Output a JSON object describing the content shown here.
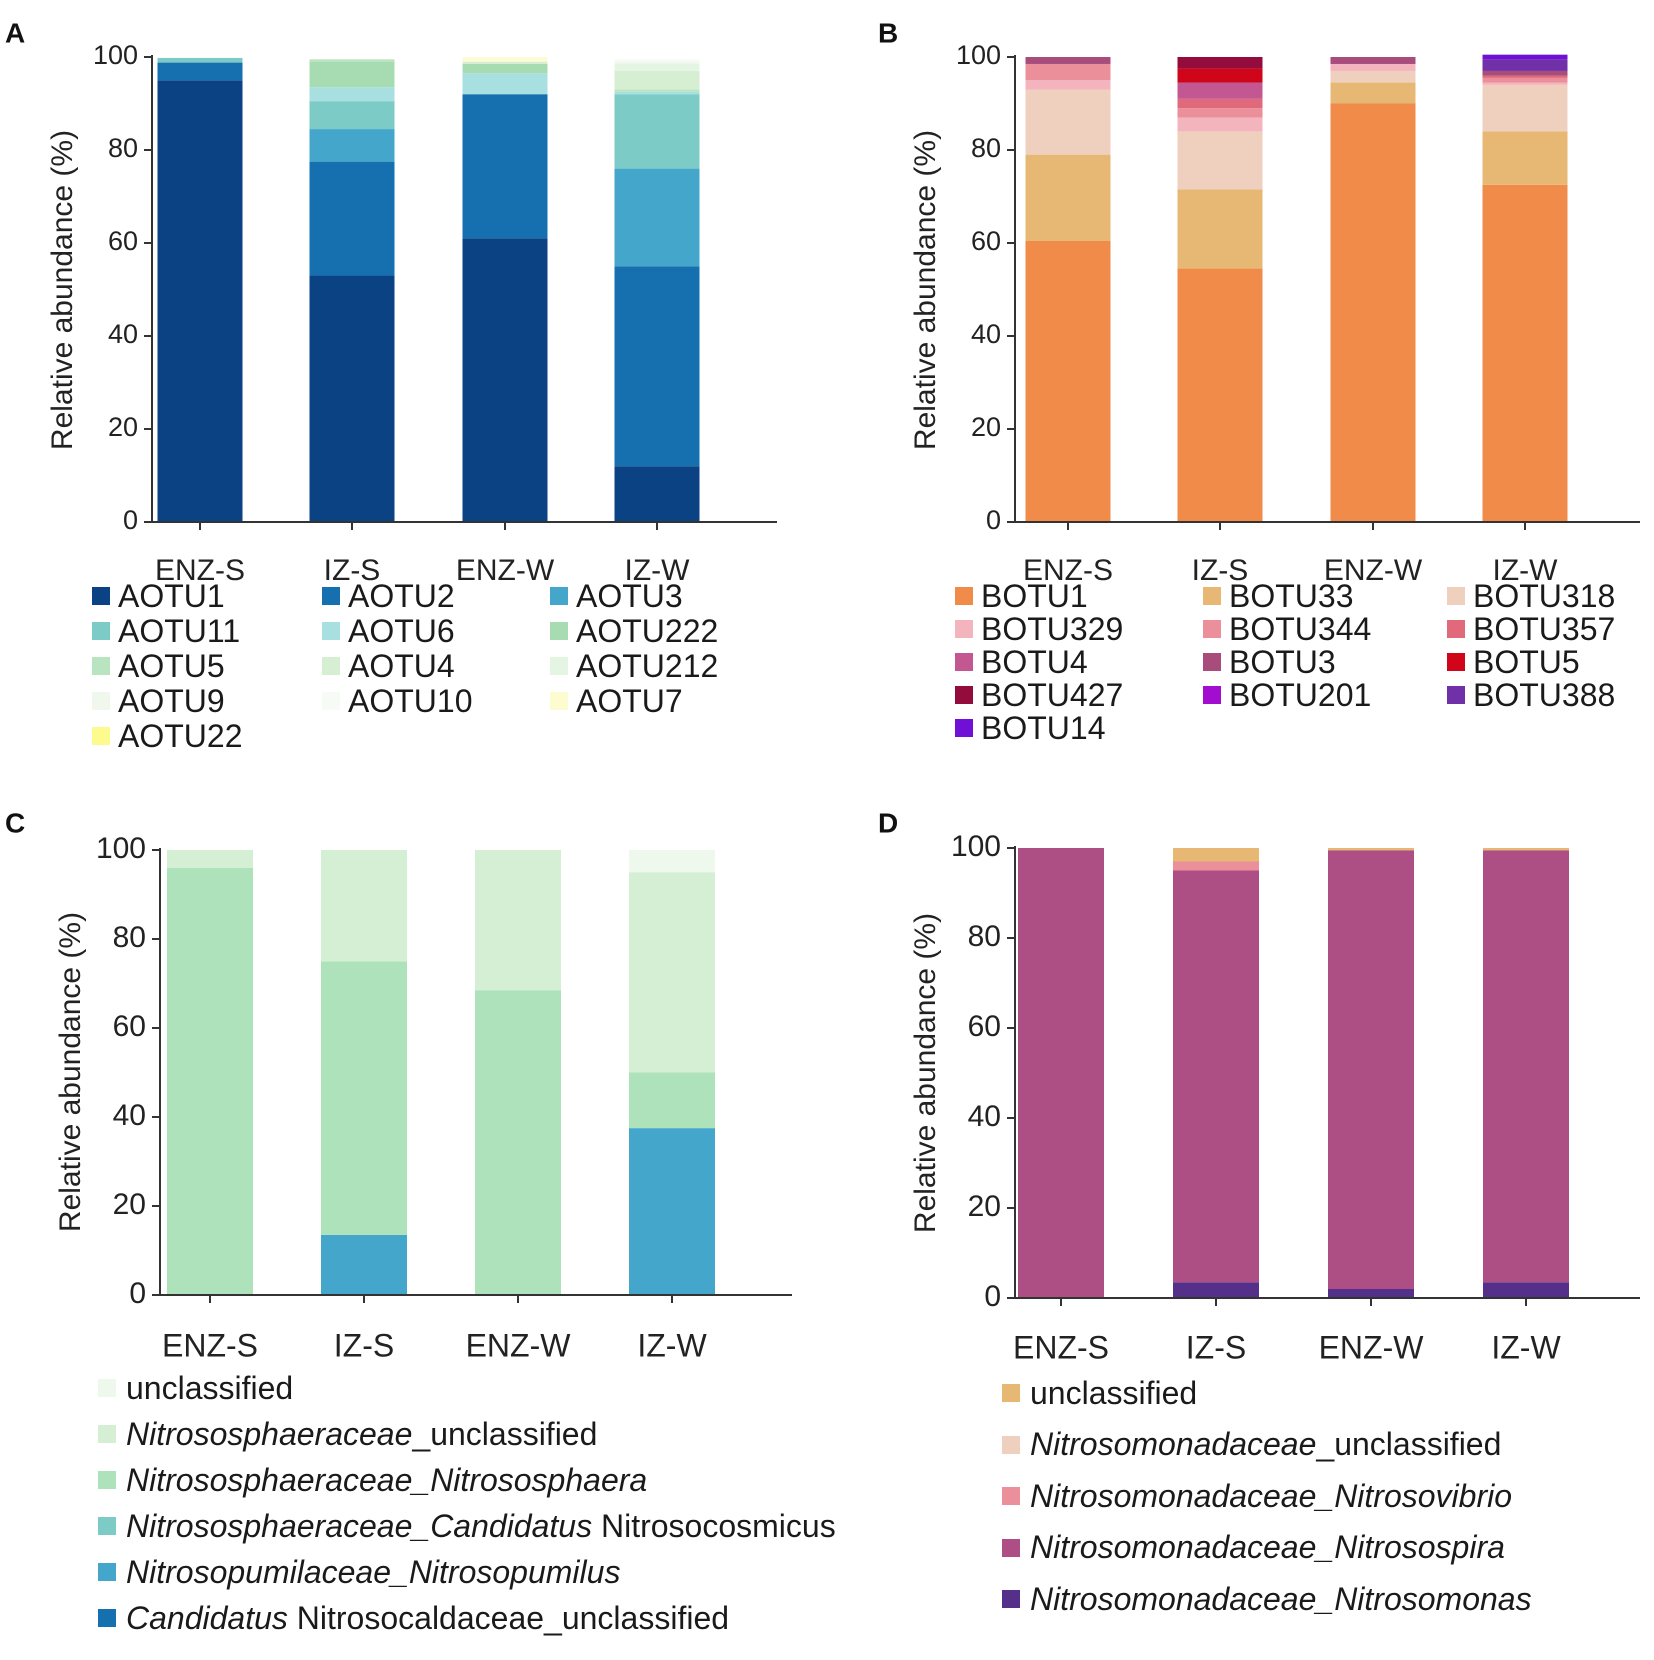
{
  "chart_data": [
    {
      "panel": "A",
      "type": "bar",
      "stacked": true,
      "ylabel": "Relative abundance (%)",
      "ylim": [
        0,
        100
      ],
      "yticks": [
        0,
        20,
        40,
        60,
        80,
        100
      ],
      "categories": [
        "ENZ-S",
        "IZ-S",
        "ENZ-W",
        "IZ-W"
      ],
      "series": [
        {
          "name": "AOTU1",
          "color": "#0b4283",
          "values": [
            95.0,
            53.0,
            61.0,
            12.0
          ]
        },
        {
          "name": "AOTU2",
          "color": "#1670b0",
          "values": [
            3.8,
            24.5,
            31.0,
            43.0
          ]
        },
        {
          "name": "AOTU3",
          "color": "#44a6cb",
          "values": [
            0.0,
            7.0,
            0.0,
            21.0
          ]
        },
        {
          "name": "AOTU11",
          "color": "#7dcbc6",
          "values": [
            1.0,
            6.0,
            0.0,
            16.0
          ]
        },
        {
          "name": "AOTU6",
          "color": "#a8dfe0",
          "values": [
            0.0,
            3.0,
            4.5,
            0.5
          ]
        },
        {
          "name": "AOTU222",
          "color": "#a7dcb3",
          "values": [
            0.0,
            5.5,
            2.0,
            0.0
          ]
        },
        {
          "name": "AOTU5",
          "color": "#b9e4c0",
          "values": [
            0.0,
            0.5,
            0.0,
            0.5
          ]
        },
        {
          "name": "AOTU4",
          "color": "#d6efd3",
          "values": [
            0.0,
            0.0,
            0.5,
            4.0
          ]
        },
        {
          "name": "AOTU212",
          "color": "#e5f5e3",
          "values": [
            0.0,
            0.0,
            0.0,
            1.5
          ]
        },
        {
          "name": "AOTU9",
          "color": "#f0f8ee",
          "values": [
            0.0,
            0.0,
            0.0,
            0.5
          ]
        },
        {
          "name": "AOTU10",
          "color": "#f7fbf6",
          "values": [
            0.0,
            0.0,
            0.0,
            0.5
          ]
        },
        {
          "name": "AOTU7",
          "color": "#fdfcd0",
          "values": [
            0.0,
            0.0,
            1.0,
            0.0
          ]
        },
        {
          "name": "AOTU22",
          "color": "#fdfb8e",
          "values": [
            0.0,
            0.0,
            0.0,
            0.0
          ]
        }
      ]
    },
    {
      "panel": "B",
      "type": "bar",
      "stacked": true,
      "ylabel": "Relative abundance (%)",
      "ylim": [
        0,
        100
      ],
      "yticks": [
        0,
        20,
        40,
        60,
        80,
        100
      ],
      "categories": [
        "ENZ-S",
        "IZ-S",
        "ENZ-W",
        "IZ-W"
      ],
      "series": [
        {
          "name": "BOTU1",
          "color": "#f08b4a",
          "values": [
            60.5,
            54.5,
            90.0,
            72.5
          ]
        },
        {
          "name": "BOTU33",
          "color": "#e6b874",
          "values": [
            18.5,
            17.0,
            4.5,
            11.5
          ]
        },
        {
          "name": "BOTU318",
          "color": "#efcfbd",
          "values": [
            14.0,
            12.5,
            2.5,
            10.0
          ]
        },
        {
          "name": "BOTU329",
          "color": "#f4b4be",
          "values": [
            2.0,
            3.0,
            1.5,
            0.5
          ]
        },
        {
          "name": "BOTU344",
          "color": "#eb8f9a",
          "values": [
            3.5,
            2.0,
            0.0,
            1.0
          ]
        },
        {
          "name": "BOTU357",
          "color": "#e06a7b",
          "values": [
            0.0,
            2.0,
            0.0,
            0.5
          ]
        },
        {
          "name": "BOTU4",
          "color": "#c25792",
          "values": [
            0.0,
            3.5,
            0.0,
            0.0
          ]
        },
        {
          "name": "BOTU3",
          "color": "#a84c7b",
          "values": [
            1.5,
            0.0,
            1.5,
            1.0
          ]
        },
        {
          "name": "BOTU5",
          "color": "#d1051a",
          "values": [
            0.0,
            3.0,
            0.0,
            0.0
          ]
        },
        {
          "name": "BOTU427",
          "color": "#940c3c",
          "values": [
            0.0,
            2.5,
            0.0,
            0.0
          ]
        },
        {
          "name": "BOTU201",
          "color": "#a30dcf",
          "values": [
            0.0,
            0.0,
            0.0,
            0.0
          ]
        },
        {
          "name": "BOTU388",
          "color": "#7030a8",
          "values": [
            0.0,
            0.0,
            0.0,
            2.5
          ]
        },
        {
          "name": "BOTU14",
          "color": "#7010d6",
          "values": [
            0.0,
            0.0,
            0.0,
            1.0
          ]
        }
      ]
    },
    {
      "panel": "C",
      "type": "bar",
      "stacked": true,
      "ylabel": "Relative abundance (%)",
      "ylim": [
        0,
        100
      ],
      "yticks": [
        0,
        20,
        40,
        60,
        80,
        100
      ],
      "categories": [
        "ENZ-S",
        "IZ-S",
        "ENZ-W",
        "IZ-W"
      ],
      "series": [
        {
          "name": "Candidatus Nitrosocaldaceae_unclassified",
          "color": "#1670b0",
          "values": [
            0.0,
            0.0,
            0.0,
            0.0
          ]
        },
        {
          "name": "Nitrosopumilaceae_Nitrosopumilus",
          "color": "#44a6cb",
          "values": [
            0.0,
            13.5,
            0.0,
            37.5
          ]
        },
        {
          "name": "Nitrososphaeraceae_Candidatus Nitrosocosmicus",
          "color": "#7dcbc6",
          "values": [
            0.0,
            0.0,
            0.0,
            0.0
          ]
        },
        {
          "name": "Nitrososphaeraceae_Nitrososphaera",
          "color": "#aee2bb",
          "values": [
            96.0,
            61.5,
            68.5,
            12.5
          ]
        },
        {
          "name": "Nitrososphaeraceae_unclassified",
          "color": "#d5efd5",
          "values": [
            4.0,
            25.0,
            31.5,
            45.0
          ]
        },
        {
          "name": "unclassified",
          "color": "#eef8ec",
          "values": [
            0.0,
            0.0,
            0.0,
            5.0
          ]
        }
      ]
    },
    {
      "panel": "D",
      "type": "bar",
      "stacked": true,
      "ylabel": "Relative abundance (%)",
      "ylim": [
        0,
        100
      ],
      "yticks": [
        0,
        20,
        40,
        60,
        80,
        100
      ],
      "categories": [
        "ENZ-S",
        "IZ-S",
        "ENZ-W",
        "IZ-W"
      ],
      "series": [
        {
          "name": "Nitrosomonadaceae_Nitrosomonas",
          "color": "#55308a",
          "values": [
            0.0,
            3.5,
            2.0,
            3.5
          ]
        },
        {
          "name": "Nitrosomonadaceae_Nitrosospira",
          "color": "#ad4e84",
          "values": [
            100.0,
            91.5,
            97.5,
            96.0
          ]
        },
        {
          "name": "Nitrosomonadaceae_Nitrosovibrio",
          "color": "#eb8f9a",
          "values": [
            0.0,
            2.0,
            0.0,
            0.0
          ]
        },
        {
          "name": "Nitrosomonadaceae_unclassified",
          "color": "#efcfbd",
          "values": [
            0.0,
            0.0,
            0.0,
            0.0
          ]
        },
        {
          "name": "unclassified",
          "color": "#e6b874",
          "values": [
            0.0,
            3.0,
            0.5,
            0.5
          ]
        }
      ]
    }
  ],
  "panel_labels": {
    "A": "A",
    "B": "B",
    "C": "C",
    "D": "D"
  },
  "legend_A": [
    {
      "label": "AOTU1",
      "color": "#0b4283"
    },
    {
      "label": "AOTU2",
      "color": "#1670b0"
    },
    {
      "label": "AOTU3",
      "color": "#44a6cb"
    },
    {
      "label": "AOTU11",
      "color": "#7dcbc6"
    },
    {
      "label": "AOTU6",
      "color": "#a8dfe0"
    },
    {
      "label": "AOTU222",
      "color": "#a7dcb3"
    },
    {
      "label": "AOTU5",
      "color": "#b9e4c0"
    },
    {
      "label": "AOTU4",
      "color": "#d6efd3"
    },
    {
      "label": "AOTU212",
      "color": "#e5f5e3"
    },
    {
      "label": "AOTU9",
      "color": "#f0f8ee"
    },
    {
      "label": "AOTU10",
      "color": "#f7fbf6"
    },
    {
      "label": "AOTU7",
      "color": "#fdfcd0"
    },
    {
      "label": "AOTU22",
      "color": "#fdfb8e"
    }
  ],
  "legend_B": [
    {
      "label": "BOTU1",
      "color": "#f08b4a"
    },
    {
      "label": "BOTU33",
      "color": "#e6b874"
    },
    {
      "label": "BOTU318",
      "color": "#efcfbd"
    },
    {
      "label": "BOTU329",
      "color": "#f4b4be"
    },
    {
      "label": "BOTU344",
      "color": "#eb8f9a"
    },
    {
      "label": "BOTU357",
      "color": "#e06a7b"
    },
    {
      "label": "BOTU4",
      "color": "#c25792"
    },
    {
      "label": "BOTU3",
      "color": "#a84c7b"
    },
    {
      "label": "BOTU5",
      "color": "#d1051a"
    },
    {
      "label": "BOTU427",
      "color": "#940c3c"
    },
    {
      "label": "BOTU201",
      "color": "#a30dcf"
    },
    {
      "label": "BOTU388",
      "color": "#7030a8"
    },
    {
      "label": "BOTU14",
      "color": "#7010d6"
    }
  ],
  "legend_C": [
    {
      "color": "#eef8ec",
      "parts": [
        {
          "text": "unclassified",
          "italic": false
        }
      ]
    },
    {
      "color": "#d5efd5",
      "parts": [
        {
          "text": "Nitrososphaeraceae",
          "italic": true
        },
        {
          "text": "_unclassified",
          "italic": false
        }
      ]
    },
    {
      "color": "#aee2bb",
      "parts": [
        {
          "text": "Nitrososphaeraceae_Nitrososphaera",
          "italic": true
        }
      ]
    },
    {
      "color": "#7dcbc6",
      "parts": [
        {
          "text": "Nitrososphaeraceae_Candidatus",
          "italic": true
        },
        {
          "text": " Nitrosocosmicus",
          "italic": false
        }
      ]
    },
    {
      "color": "#44a6cb",
      "parts": [
        {
          "text": "Nitrosopumilaceae_Nitrosopumilus",
          "italic": true
        }
      ]
    },
    {
      "color": "#1670b0",
      "parts": [
        {
          "text": "Candidatus",
          "italic": true
        },
        {
          "text": " Nitrosocaldaceae_unclassified",
          "italic": false
        }
      ]
    }
  ],
  "legend_D": [
    {
      "color": "#e6b874",
      "parts": [
        {
          "text": "unclassified",
          "italic": false
        }
      ]
    },
    {
      "color": "#efcfbd",
      "parts": [
        {
          "text": "Nitrosomonadaceae",
          "italic": true
        },
        {
          "text": "_unclassified",
          "italic": false
        }
      ]
    },
    {
      "color": "#eb8f9a",
      "parts": [
        {
          "text": "Nitrosomonadaceae_Nitrosovibrio",
          "italic": true
        }
      ]
    },
    {
      "color": "#ad4e84",
      "parts": [
        {
          "text": "Nitrosomonadaceae_Nitrosospira",
          "italic": true
        }
      ]
    },
    {
      "color": "#55308a",
      "parts": [
        {
          "text": "Nitrosomonadaceae_Nitrosomonas",
          "italic": true
        }
      ]
    }
  ]
}
